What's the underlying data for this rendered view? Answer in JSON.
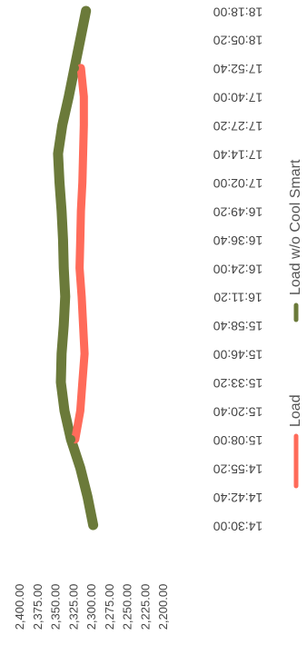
{
  "chart_data": {
    "type": "line",
    "title": "",
    "xlabel": "",
    "ylabel": "",
    "x": [
      "14:30:00",
      "14:42:40",
      "14:55:20",
      "15:08:00",
      "15:20:40",
      "15:33:20",
      "15:46:00",
      "15:58:40",
      "16:11:20",
      "16:24:00",
      "16:36:40",
      "16:49:20",
      "17:02:00",
      "17:14:40",
      "17:27:20",
      "17:40:00",
      "17:52:40",
      "18:05:20",
      "18:18:00"
    ],
    "y_ticks": [
      "2,400.00",
      "2,375.00",
      "2,350.00",
      "2,325.00",
      "2,300.00",
      "2,275.00",
      "2,250.00",
      "2,225.00",
      "2,200.00"
    ],
    "ylim": [
      2200,
      2400
    ],
    "series": [
      {
        "name": "Load",
        "color": "#ff6b5a",
        "values": [
          null,
          null,
          null,
          2323,
          2316,
          2313,
          2310,
          2312,
          2314,
          2317,
          2316,
          2315,
          2313,
          2312,
          2311,
          2311,
          2315,
          null,
          null
        ]
      },
      {
        "name": "Load w/o Cool Smart",
        "color": "#6b7a3a",
        "values": [
          2298,
          2306,
          2316,
          2329,
          2338,
          2343,
          2342,
          2339,
          2337,
          2339,
          2340,
          2342,
          2345,
          2347,
          2341,
          2332,
          2324,
          2316,
          2308
        ]
      }
    ],
    "legend": "bottom",
    "grid": false
  }
}
